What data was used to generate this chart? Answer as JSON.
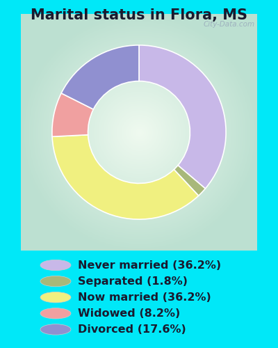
{
  "title": "Marital status in Flora, MS",
  "slices": [
    {
      "label": "Never married (36.2%)",
      "value": 36.2,
      "color": "#c8b8e8"
    },
    {
      "label": "Separated (1.8%)",
      "value": 1.8,
      "color": "#a8b87a"
    },
    {
      "label": "Now married (36.2%)",
      "value": 36.2,
      "color": "#f0f080"
    },
    {
      "label": "Widowed (8.2%)",
      "value": 8.2,
      "color": "#f0a0a0"
    },
    {
      "label": "Divorced (17.6%)",
      "value": 17.6,
      "color": "#9090d0"
    }
  ],
  "bg_color": "#00e8f8",
  "chart_bg_outer": "#c0e8d0",
  "chart_bg_inner": "#e8f8f0",
  "watermark": "City-Data.com",
  "title_fontsize": 15,
  "legend_fontsize": 11.5,
  "donut_width": 0.38
}
